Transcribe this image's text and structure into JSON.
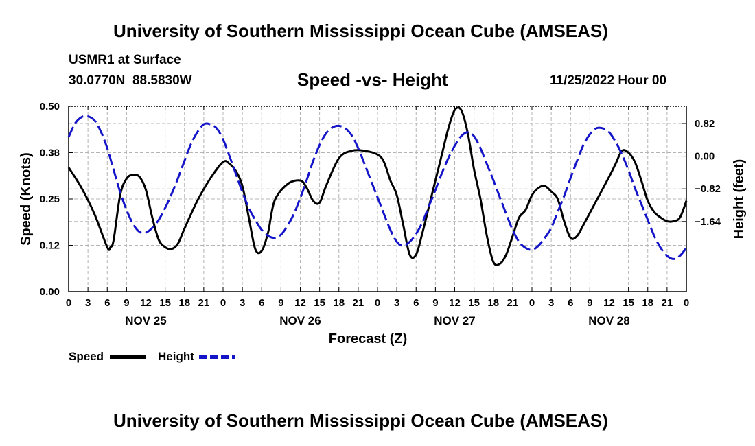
{
  "header": {
    "title": "University of Southern Mississippi Ocean Cube (AMSEAS)",
    "station": "USMR1 at Surface",
    "coords": "30.0770N  88.5830W",
    "chart_title": "Speed -vs- Height",
    "datetime": "11/25/2022 Hour 00"
  },
  "footer": {
    "title": "University of Southern Mississippi Ocean Cube (AMSEAS)"
  },
  "legend": {
    "items": [
      {
        "label": "Speed",
        "color": "#000000"
      },
      {
        "label": "Height",
        "color": "#1414c8"
      }
    ]
  },
  "chart_data": {
    "type": "line",
    "title": "Speed -vs- Height",
    "xlabel": "Forecast (Z)",
    "ylabel": "Speed (Knots)",
    "y2label": "Height (feet)",
    "x_tick_labels": [
      "0",
      "3",
      "6",
      "9",
      "12",
      "15",
      "18",
      "21",
      "0",
      "3",
      "6",
      "9",
      "12",
      "15",
      "18",
      "21",
      "0",
      "3",
      "6",
      "9",
      "12",
      "15",
      "18",
      "21",
      "0",
      "3",
      "6",
      "9",
      "12",
      "15",
      "18",
      "21",
      "0"
    ],
    "day_labels": [
      {
        "label": "NOV 25",
        "hour": 12
      },
      {
        "label": "NOV 26",
        "hour": 36
      },
      {
        "label": "NOV 27",
        "hour": 60
      },
      {
        "label": "NOV 28",
        "hour": 84
      }
    ],
    "xlim": [
      0,
      96
    ],
    "ylim": [
      0,
      0.5
    ],
    "y_ticks": [
      0.0,
      0.125,
      0.25,
      0.375,
      0.5
    ],
    "y_tick_labels": [
      "0.00",
      "0.12",
      "0.25",
      "0.38",
      "0.50"
    ],
    "y2lim": [
      -3.4,
      1.25
    ],
    "y2_ticks": [
      0.82,
      0.0,
      -0.82,
      -1.64
    ],
    "y2_tick_labels": [
      "0.82",
      "0.00",
      "−0.82",
      "−1.64"
    ],
    "grid": true,
    "series": [
      {
        "name": "Speed",
        "axis": "left",
        "color": "#000000",
        "dash": "solid",
        "x": [
          0,
          2,
          4,
          6,
          6.5,
          7,
          8,
          9,
          10,
          11,
          12,
          13,
          14,
          15,
          16,
          17,
          18,
          20,
          22,
          24,
          25,
          26,
          27,
          28,
          29,
          30,
          31,
          32,
          34,
          36,
          37,
          38,
          39,
          40,
          42,
          44,
          46,
          48,
          49,
          50,
          51,
          52,
          53,
          54,
          55,
          56,
          57,
          58,
          59,
          60,
          61,
          62,
          63,
          64,
          65,
          66,
          67,
          68,
          69,
          70,
          71,
          72,
          73,
          74,
          75,
          76,
          77,
          78,
          79,
          80,
          82,
          84,
          85,
          86,
          87,
          88,
          89,
          90,
          91,
          92,
          93,
          94,
          95,
          96
        ],
        "values": [
          0.335,
          0.28,
          0.21,
          0.12,
          0.12,
          0.14,
          0.26,
          0.305,
          0.315,
          0.31,
          0.275,
          0.2,
          0.14,
          0.12,
          0.115,
          0.13,
          0.17,
          0.245,
          0.305,
          0.35,
          0.345,
          0.325,
          0.285,
          0.2,
          0.115,
          0.11,
          0.16,
          0.245,
          0.29,
          0.3,
          0.28,
          0.245,
          0.24,
          0.285,
          0.36,
          0.38,
          0.38,
          0.37,
          0.35,
          0.3,
          0.26,
          0.18,
          0.1,
          0.1,
          0.16,
          0.23,
          0.3,
          0.37,
          0.44,
          0.49,
          0.49,
          0.43,
          0.33,
          0.25,
          0.15,
          0.08,
          0.075,
          0.1,
          0.15,
          0.2,
          0.22,
          0.26,
          0.28,
          0.285,
          0.27,
          0.25,
          0.19,
          0.145,
          0.15,
          0.18,
          0.245,
          0.31,
          0.345,
          0.38,
          0.375,
          0.35,
          0.3,
          0.245,
          0.215,
          0.2,
          0.19,
          0.19,
          0.2,
          0.245
        ]
      },
      {
        "name": "Height",
        "axis": "right",
        "color": "#1414c8",
        "dash": "dashed",
        "x": [
          0,
          1,
          2,
          3,
          4,
          5,
          6,
          7,
          8,
          9,
          10,
          11,
          12,
          13,
          14,
          15,
          16,
          17,
          18,
          19,
          20,
          21,
          22,
          23,
          24,
          25,
          26,
          27,
          28,
          29,
          30,
          31,
          32,
          33,
          34,
          35,
          36,
          37,
          38,
          39,
          40,
          41,
          42,
          43,
          44,
          45,
          46,
          47,
          48,
          49,
          50,
          51,
          52,
          53,
          54,
          55,
          56,
          57,
          58,
          59,
          60,
          61,
          62,
          63,
          64,
          65,
          66,
          67,
          68,
          69,
          70,
          71,
          72,
          73,
          74,
          75,
          76,
          77,
          78,
          79,
          80,
          81,
          82,
          83,
          84,
          85,
          86,
          87,
          88,
          89,
          90,
          91,
          92,
          93,
          94,
          95,
          96
        ],
        "values": [
          0.48,
          0.82,
          0.98,
          1.0,
          0.9,
          0.62,
          0.2,
          -0.35,
          -0.9,
          -1.35,
          -1.7,
          -1.9,
          -1.92,
          -1.8,
          -1.6,
          -1.3,
          -0.95,
          -0.55,
          -0.12,
          0.3,
          0.6,
          0.8,
          0.8,
          0.7,
          0.42,
          0.0,
          -0.45,
          -0.9,
          -1.3,
          -1.6,
          -1.85,
          -2.0,
          -2.05,
          -1.97,
          -1.75,
          -1.45,
          -1.05,
          -0.6,
          -0.12,
          0.28,
          0.57,
          0.72,
          0.76,
          0.7,
          0.52,
          0.2,
          -0.2,
          -0.62,
          -1.03,
          -1.45,
          -1.85,
          -2.15,
          -2.25,
          -2.15,
          -1.95,
          -1.65,
          -1.25,
          -0.85,
          -0.43,
          -0.05,
          0.26,
          0.5,
          0.6,
          0.5,
          0.2,
          -0.2,
          -0.6,
          -1.03,
          -1.45,
          -1.85,
          -2.15,
          -2.3,
          -2.35,
          -2.25,
          -2.05,
          -1.8,
          -1.4,
          -1.0,
          -0.55,
          -0.12,
          0.28,
          0.55,
          0.7,
          0.7,
          0.6,
          0.36,
          0.04,
          -0.35,
          -0.8,
          -1.2,
          -1.6,
          -2.0,
          -2.3,
          -2.5,
          -2.58,
          -2.5,
          -2.3
        ]
      }
    ]
  }
}
